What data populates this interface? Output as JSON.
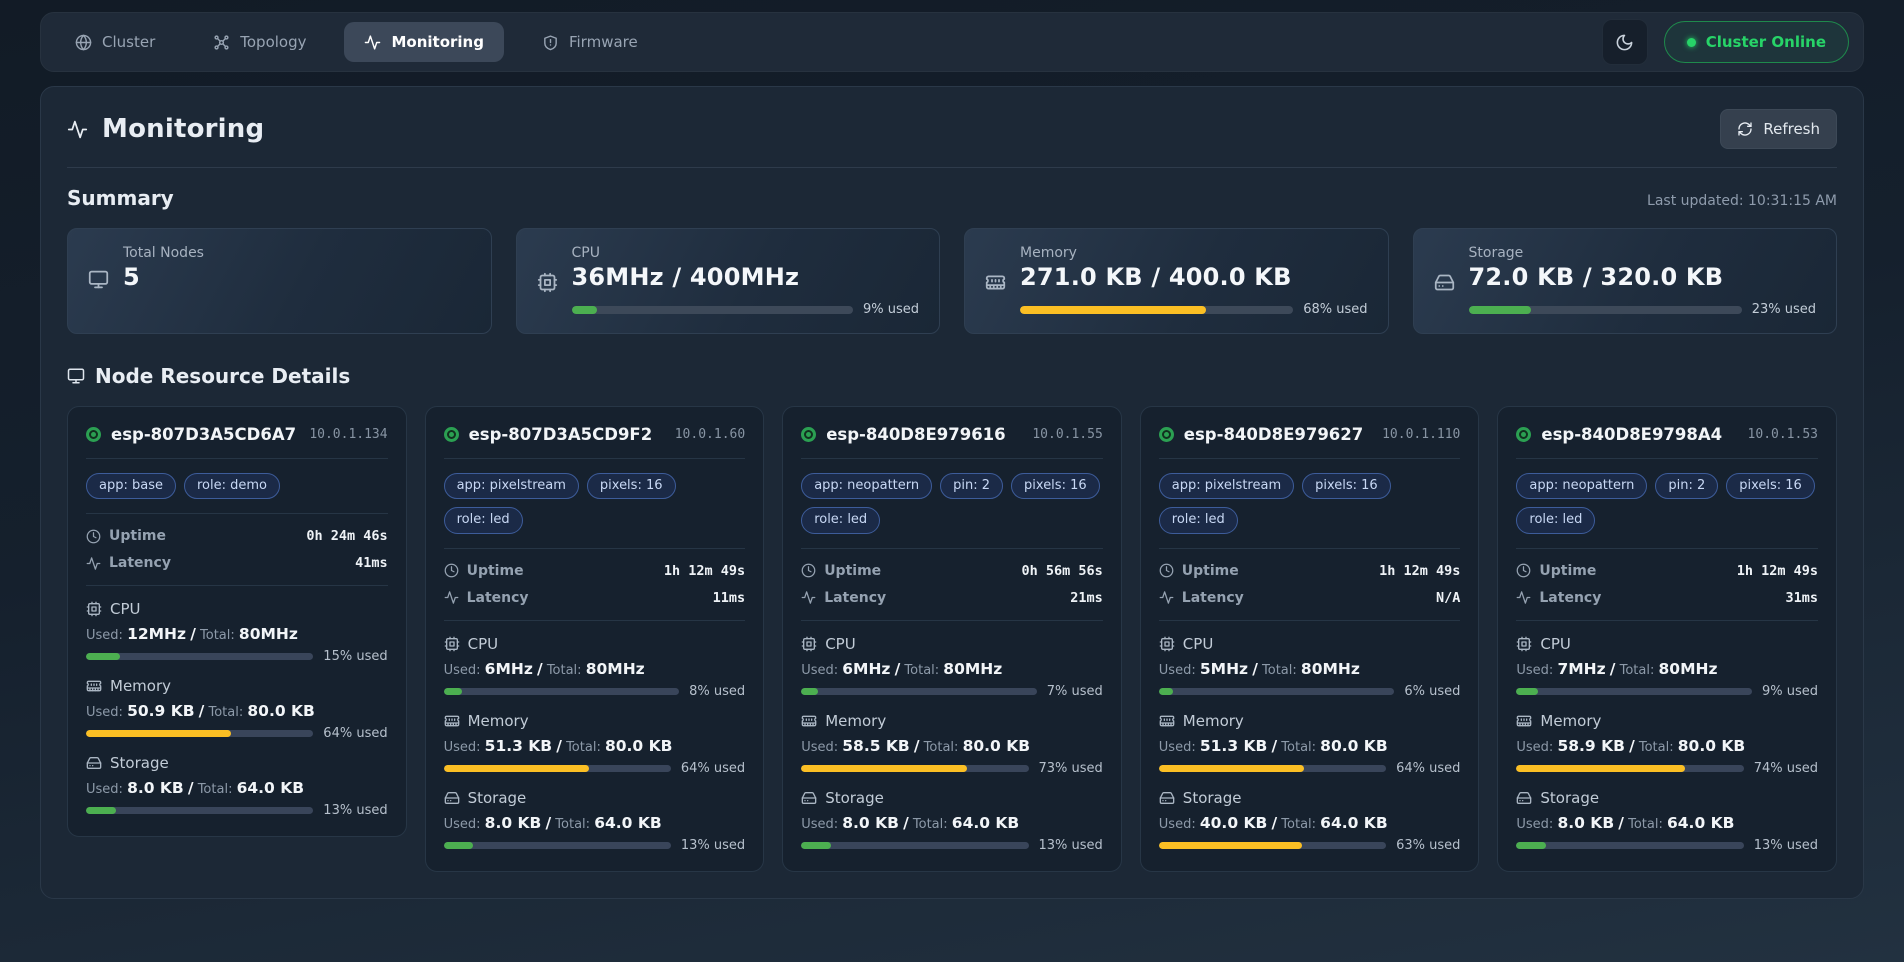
{
  "theme": {
    "accent_green": "#27d468",
    "progress_green": "#4caf50",
    "progress_yellow": "#fbbf24"
  },
  "nav": {
    "tabs": [
      {
        "label": "Cluster",
        "icon": "globe-icon",
        "active": false
      },
      {
        "label": "Topology",
        "icon": "topology-icon",
        "active": false
      },
      {
        "label": "Monitoring",
        "icon": "activity-icon",
        "active": true
      },
      {
        "label": "Firmware",
        "icon": "shield-alert-icon",
        "active": false
      }
    ],
    "status_badge": "Cluster Online"
  },
  "page": {
    "title": "Monitoring",
    "refresh_label": "Refresh"
  },
  "summary": {
    "heading": "Summary",
    "last_updated": "Last updated: 10:31:15 AM",
    "cards": [
      {
        "label": "Total Nodes",
        "value": "5"
      },
      {
        "label": "CPU",
        "value": "36MHz / 400MHz",
        "percent": 9,
        "percent_label": "9% used",
        "color": "green"
      },
      {
        "label": "Memory",
        "value": "271.0 KB / 400.0 KB",
        "percent": 68,
        "percent_label": "68% used",
        "color": "yellow"
      },
      {
        "label": "Storage",
        "value": "72.0 KB / 320.0 KB",
        "percent": 23,
        "percent_label": "23% used",
        "color": "green"
      }
    ]
  },
  "nodes": {
    "heading": "Node Resource Details",
    "labels": {
      "uptime": "Uptime",
      "latency": "Latency",
      "used": "Used:",
      "total": "Total:",
      "slash": "/"
    },
    "items": [
      {
        "name": "esp-807D3A5CD6A7",
        "ip": "10.0.1.134",
        "tags": [
          "app: base",
          "role: demo"
        ],
        "uptime": "0h 24m 46s",
        "latency": "41ms",
        "resources": [
          {
            "kind": "cpu",
            "label": "CPU",
            "used": "12MHz",
            "total": "80MHz",
            "percent": 15,
            "percent_label": "15% used",
            "color": "green"
          },
          {
            "kind": "memory",
            "label": "Memory",
            "used": "50.9 KB",
            "total": "80.0 KB",
            "percent": 64,
            "percent_label": "64% used",
            "color": "yellow"
          },
          {
            "kind": "storage",
            "label": "Storage",
            "used": "8.0 KB",
            "total": "64.0 KB",
            "percent": 13,
            "percent_label": "13% used",
            "color": "green"
          }
        ]
      },
      {
        "name": "esp-807D3A5CD9F2",
        "ip": "10.0.1.60",
        "tags": [
          "app: pixelstream",
          "pixels: 16",
          "role: led"
        ],
        "uptime": "1h 12m 49s",
        "latency": "11ms",
        "resources": [
          {
            "kind": "cpu",
            "label": "CPU",
            "used": "6MHz",
            "total": "80MHz",
            "percent": 8,
            "percent_label": "8% used",
            "color": "green"
          },
          {
            "kind": "memory",
            "label": "Memory",
            "used": "51.3 KB",
            "total": "80.0 KB",
            "percent": 64,
            "percent_label": "64% used",
            "color": "yellow"
          },
          {
            "kind": "storage",
            "label": "Storage",
            "used": "8.0 KB",
            "total": "64.0 KB",
            "percent": 13,
            "percent_label": "13% used",
            "color": "green"
          }
        ]
      },
      {
        "name": "esp-840D8E979616",
        "ip": "10.0.1.55",
        "tags": [
          "app: neopattern",
          "pin: 2",
          "pixels: 16",
          "role: led"
        ],
        "uptime": "0h 56m 56s",
        "latency": "21ms",
        "resources": [
          {
            "kind": "cpu",
            "label": "CPU",
            "used": "6MHz",
            "total": "80MHz",
            "percent": 7,
            "percent_label": "7% used",
            "color": "green"
          },
          {
            "kind": "memory",
            "label": "Memory",
            "used": "58.5 KB",
            "total": "80.0 KB",
            "percent": 73,
            "percent_label": "73% used",
            "color": "yellow"
          },
          {
            "kind": "storage",
            "label": "Storage",
            "used": "8.0 KB",
            "total": "64.0 KB",
            "percent": 13,
            "percent_label": "13% used",
            "color": "green"
          }
        ]
      },
      {
        "name": "esp-840D8E979627",
        "ip": "10.0.1.110",
        "tags": [
          "app: pixelstream",
          "pixels: 16",
          "role: led"
        ],
        "uptime": "1h 12m 49s",
        "latency": "N/A",
        "resources": [
          {
            "kind": "cpu",
            "label": "CPU",
            "used": "5MHz",
            "total": "80MHz",
            "percent": 6,
            "percent_label": "6% used",
            "color": "green"
          },
          {
            "kind": "memory",
            "label": "Memory",
            "used": "51.3 KB",
            "total": "80.0 KB",
            "percent": 64,
            "percent_label": "64% used",
            "color": "yellow"
          },
          {
            "kind": "storage",
            "label": "Storage",
            "used": "40.0 KB",
            "total": "64.0 KB",
            "percent": 63,
            "percent_label": "63% used",
            "color": "yellow"
          }
        ]
      },
      {
        "name": "esp-840D8E9798A4",
        "ip": "10.0.1.53",
        "tags": [
          "app: neopattern",
          "pin: 2",
          "pixels: 16",
          "role: led"
        ],
        "uptime": "1h 12m 49s",
        "latency": "31ms",
        "resources": [
          {
            "kind": "cpu",
            "label": "CPU",
            "used": "7MHz",
            "total": "80MHz",
            "percent": 9,
            "percent_label": "9% used",
            "color": "green"
          },
          {
            "kind": "memory",
            "label": "Memory",
            "used": "58.9 KB",
            "total": "80.0 KB",
            "percent": 74,
            "percent_label": "74% used",
            "color": "yellow"
          },
          {
            "kind": "storage",
            "label": "Storage",
            "used": "8.0 KB",
            "total": "64.0 KB",
            "percent": 13,
            "percent_label": "13% used",
            "color": "green"
          }
        ]
      }
    ]
  }
}
